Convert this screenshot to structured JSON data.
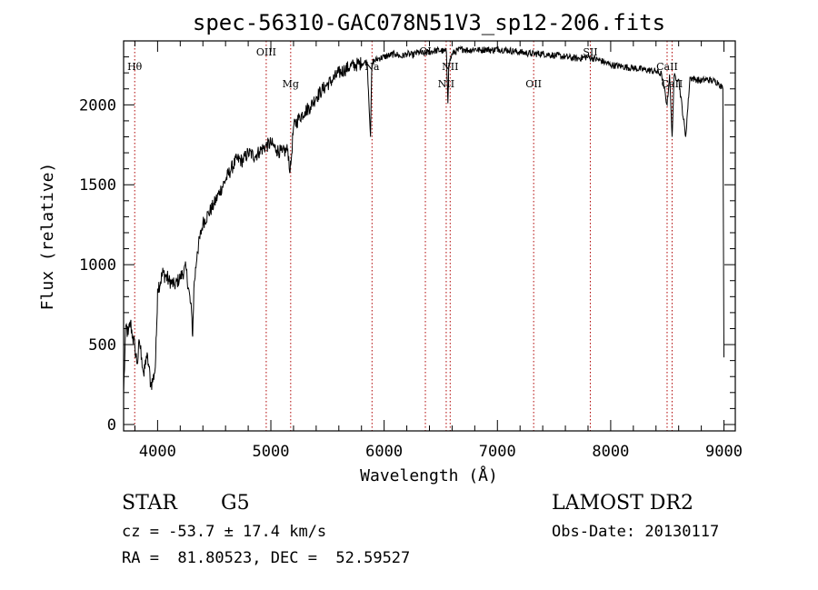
{
  "chart_data": {
    "type": "line",
    "title": "spec-56310-GAC078N51V3_sp12-206.fits",
    "xlabel": "Wavelength (Å)",
    "ylabel": "Flux (relative)",
    "xlim": [
      3700,
      9100
    ],
    "ylim": [
      -40,
      2400
    ],
    "xticks": [
      4000,
      5000,
      6000,
      7000,
      8000,
      9000
    ],
    "yticks": [
      0,
      500,
      1000,
      1500,
      2000
    ],
    "grid": false,
    "series": [
      {
        "x": [
          3700,
          3720,
          3740,
          3760,
          3780,
          3800,
          3820,
          3840,
          3860,
          3880,
          3900,
          3920,
          3940,
          3960,
          3970,
          3980,
          3990,
          4000,
          4050,
          4100,
          4150,
          4200,
          4250,
          4300,
          4310,
          4320,
          4350,
          4400,
          4450,
          4500,
          4550,
          4600,
          4650,
          4700,
          4750,
          4800,
          4860,
          4900,
          4950,
          5000,
          5050,
          5100,
          5150,
          5170,
          5180,
          5200,
          5250,
          5300,
          5350,
          5400,
          5450,
          5500,
          5550,
          5600,
          5650,
          5700,
          5750,
          5800,
          5850,
          5880,
          5890,
          5900,
          5950,
          6000,
          6050,
          6100,
          6150,
          6200,
          6250,
          6300,
          6350,
          6400,
          6450,
          6500,
          6550,
          6563,
          6570,
          6600,
          6650,
          6700,
          6750,
          6800,
          6850,
          6900,
          6950,
          7000,
          7100,
          7200,
          7300,
          7400,
          7500,
          7600,
          7700,
          7800,
          7900,
          8000,
          8100,
          8200,
          8300,
          8400,
          8450,
          8498,
          8520,
          8542,
          8560,
          8600,
          8662,
          8700,
          8750,
          8800,
          8850,
          8900,
          8950,
          8990,
          9000
        ],
        "y": [
          200,
          620,
          560,
          640,
          550,
          480,
          380,
          520,
          420,
          300,
          430,
          380,
          250,
          280,
          320,
          360,
          560,
          850,
          950,
          900,
          870,
          920,
          980,
          700,
          550,
          850,
          1080,
          1260,
          1320,
          1380,
          1460,
          1530,
          1600,
          1660,
          1650,
          1700,
          1680,
          1710,
          1740,
          1760,
          1720,
          1700,
          1720,
          1580,
          1660,
          1860,
          1920,
          1960,
          1990,
          2050,
          2090,
          2130,
          2160,
          2200,
          2220,
          2240,
          2250,
          2260,
          2270,
          1800,
          2200,
          2270,
          2290,
          2300,
          2310,
          2320,
          2300,
          2320,
          2310,
          2330,
          2320,
          2330,
          2340,
          2340,
          2330,
          2010,
          2250,
          2320,
          2340,
          2350,
          2340,
          2350,
          2340,
          2350,
          2340,
          2350,
          2340,
          2330,
          2320,
          2320,
          2310,
          2300,
          2290,
          2300,
          2280,
          2250,
          2240,
          2230,
          2220,
          2210,
          2190,
          2000,
          2190,
          1800,
          2180,
          2160,
          1800,
          2170,
          2160,
          2150,
          2160,
          2150,
          2140,
          2100,
          420
        ]
      }
    ],
    "lines": [
      {
        "label": "Hθ",
        "x": 3798
      },
      {
        "label": "OIII",
        "x": 4959
      },
      {
        "label": "Mg",
        "x": 5175
      },
      {
        "label": "Na",
        "x": 5893
      },
      {
        "label": "OI",
        "x": 6364
      },
      {
        "label": "NII",
        "x": 6548
      },
      {
        "label": "NII",
        "x": 6583
      },
      {
        "label": "OII",
        "x": 7320
      },
      {
        "label": "SII",
        "x": 7820
      },
      {
        "label": "CaII",
        "x": 8498
      },
      {
        "label": "CaII",
        "x": 8542
      }
    ],
    "annotations": {
      "class_label": "STAR",
      "subclass": "G5",
      "survey": "LAMOST DR2",
      "cz": "cz = -53.7 ± 17.4 km/s",
      "obs_date": "Obs-Date: 20130117",
      "coords": "RA =  81.80523, DEC =  52.59527"
    }
  }
}
